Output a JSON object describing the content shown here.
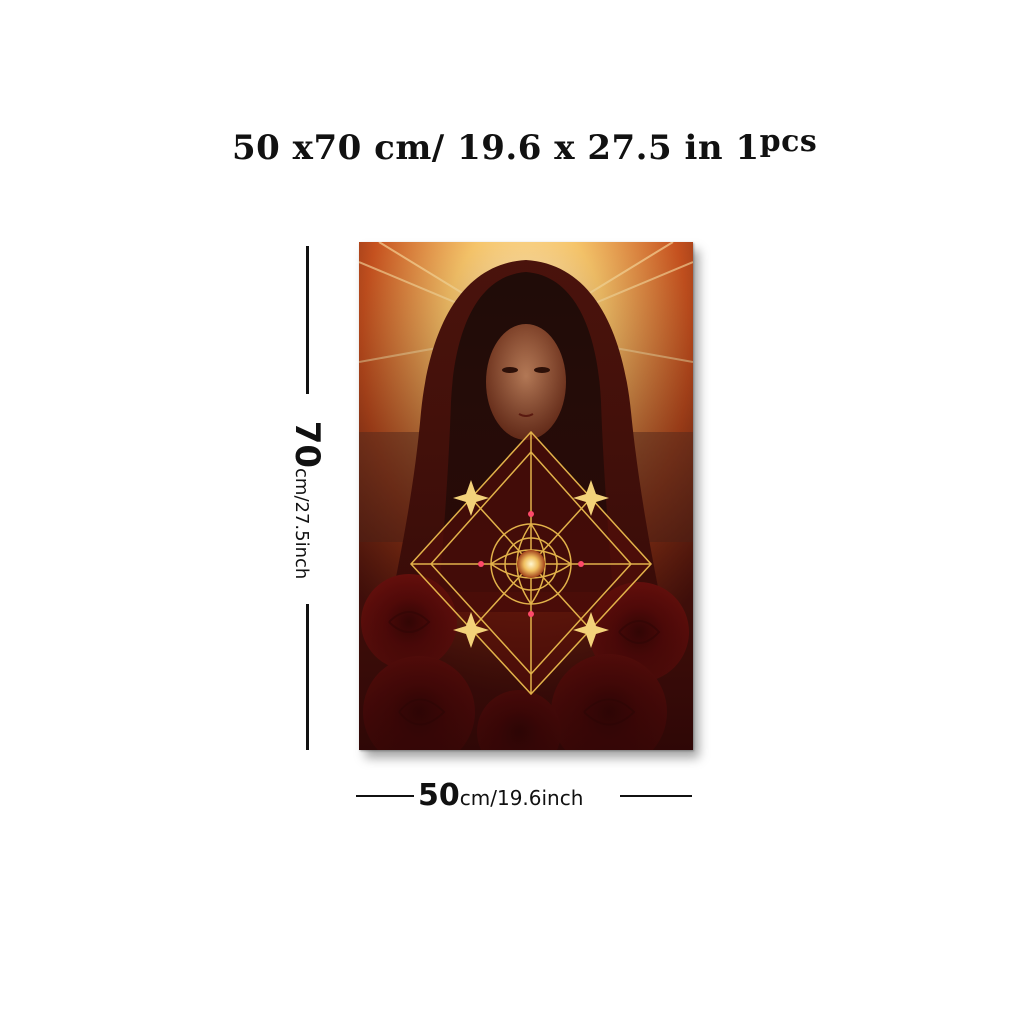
{
  "headline": {
    "width_value": "50",
    "times_1": "x",
    "height_value": "70",
    "unit_cm": "cm/",
    "inch_dims": "19.6 x 27.5 in",
    "count": "1",
    "count_unit": "pcs"
  },
  "height_dimension": {
    "value": "70",
    "unit_text": "cm/27.5inch"
  },
  "width_dimension": {
    "value": "50",
    "unit_text": "cm/19.6inch"
  },
  "artwork": {
    "subject": "painting of a hooded woman with a golden geometric star emblem and red roses",
    "colors": {
      "glow": "#f6c56a",
      "hood": "#6e1410",
      "roses": "#8c0d0d",
      "gold": "#e2b24a"
    }
  }
}
